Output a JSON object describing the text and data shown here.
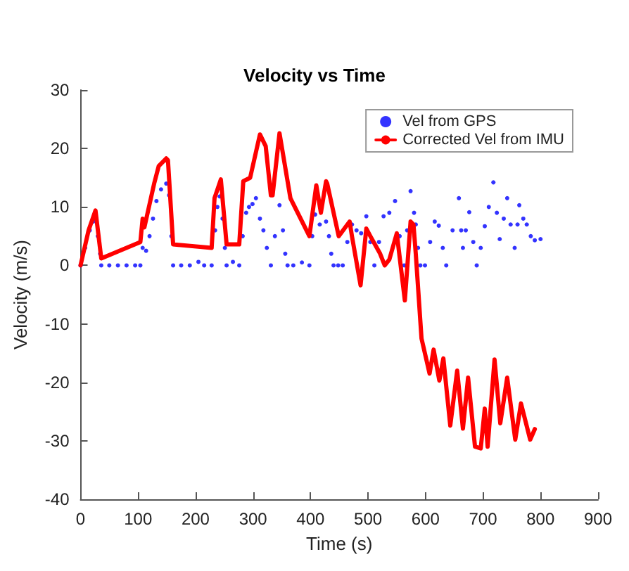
{
  "chart_data": {
    "type": "line",
    "title": "Velocity vs Time",
    "xlabel": "Time (s)",
    "ylabel": "Velocity (m/s)",
    "xlim": [
      0,
      900
    ],
    "xticks": [
      0,
      100,
      200,
      300,
      400,
      500,
      600,
      700,
      800,
      900
    ],
    "ylim": [
      -40,
      30
    ],
    "yticks": [
      -40,
      -30,
      -20,
      -10,
      0,
      10,
      20,
      30
    ],
    "grid": false,
    "legend": "top right",
    "series": [
      {
        "name": "Vel from GPS",
        "type": "scatter",
        "color": "#0000ff",
        "x": [
          0,
          8,
          16,
          22,
          26,
          30,
          34,
          36,
          50,
          65,
          80,
          95,
          104,
          108,
          114,
          120,
          126,
          132,
          140,
          149,
          154,
          158,
          161,
          175,
          190,
          205,
          215,
          228,
          234,
          238,
          242,
          247,
          251,
          254,
          265,
          276,
          282,
          288,
          293,
          299,
          305,
          312,
          318,
          324,
          331,
          338,
          346,
          352,
          356,
          360,
          370,
          385,
          398,
          403,
          408,
          416,
          427,
          432,
          436,
          440,
          448,
          456,
          464,
          472,
          480,
          488,
          497,
          504,
          511,
          519,
          527,
          537,
          547,
          555,
          563,
          568,
          574,
          580,
          583,
          587,
          591,
          599,
          608,
          616,
          623,
          630,
          636,
          647,
          658,
          662,
          665,
          670,
          676,
          683,
          689,
          696,
          703,
          710,
          718,
          724,
          729,
          736,
          742,
          748,
          755,
          760,
          763,
          770,
          776,
          783,
          790,
          800
        ],
        "values": [
          0,
          3,
          6,
          7.5,
          8,
          5,
          2,
          0,
          0,
          0,
          0,
          0,
          0,
          3,
          2.5,
          5,
          8,
          11,
          13,
          14,
          12,
          5,
          0,
          0,
          0,
          0.6,
          0,
          0,
          6,
          10,
          11.8,
          8,
          3,
          0,
          0.6,
          0,
          5,
          9,
          10,
          10.5,
          11.5,
          8,
          6,
          3,
          0,
          5,
          10.3,
          6,
          2,
          0,
          0,
          0.5,
          0,
          5,
          8.7,
          7,
          7.5,
          5,
          2,
          0,
          0,
          0,
          4,
          7,
          6,
          5.5,
          8.4,
          4,
          0,
          4,
          8.4,
          9,
          11,
          5,
          0,
          6,
          12.7,
          9,
          7,
          3,
          0,
          0,
          4,
          7.5,
          6.8,
          3,
          0,
          6,
          11.5,
          6,
          3,
          6,
          9.1,
          4,
          0,
          3,
          6.7,
          10,
          14.2,
          9,
          4.5,
          8,
          11.5,
          7,
          3,
          7,
          10.3,
          8,
          7,
          5,
          4.3,
          4.5
        ]
      },
      {
        "name": "Corrected Vel from IMU",
        "color": "#ff0000",
        "x": [
          0,
          14,
          26,
          36,
          104,
          108,
          111,
          128,
          136,
          149,
          152,
          161,
          228,
          233,
          244,
          254,
          276,
          283,
          295,
          312,
          322,
          331,
          334,
          346,
          365,
          398,
          410,
          418,
          427,
          429,
          449,
          468,
          472,
          487,
          497,
          504,
          521,
          529,
          537,
          550,
          564,
          574,
          579,
          583,
          593,
          607,
          614,
          624,
          631,
          643,
          655,
          665,
          674,
          686,
          696,
          703,
          708,
          720,
          730,
          742,
          756,
          766,
          782,
          790
        ],
        "values": [
          0,
          6,
          9.4,
          1.2,
          4,
          8,
          6.5,
          14,
          17,
          18.3,
          18,
          3.6,
          3,
          11.5,
          14.7,
          3.6,
          3.6,
          14.4,
          15,
          22.4,
          20.4,
          12,
          12,
          22.6,
          11.5,
          5,
          13.7,
          9,
          14.4,
          14,
          5,
          7.5,
          5,
          -3.4,
          6.3,
          5,
          2,
          0,
          1,
          5.5,
          -6,
          7.5,
          7,
          2,
          -12.5,
          -18.5,
          -14.4,
          -19.7,
          -15.9,
          -27.4,
          -18,
          -27.9,
          -19.2,
          -31,
          -31.3,
          -24.5,
          -31,
          -16.1,
          -27,
          -19.2,
          -29.8,
          -23.6,
          -29.8,
          -28
        ]
      }
    ]
  }
}
